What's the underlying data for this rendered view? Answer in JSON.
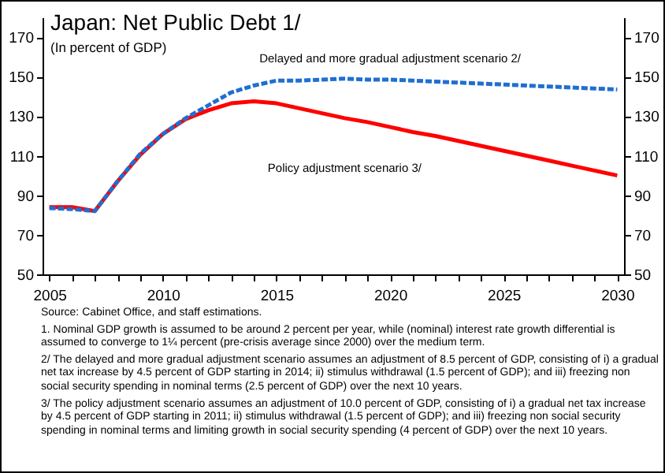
{
  "chart_data": {
    "type": "line",
    "title": "Japan: Net Public Debt 1/",
    "subtitle": "(In percent of GDP)",
    "x": [
      2005,
      2006,
      2007,
      2008,
      2009,
      2010,
      2011,
      2012,
      2013,
      2014,
      2015,
      2016,
      2017,
      2018,
      2019,
      2020,
      2021,
      2022,
      2023,
      2024,
      2025,
      2026,
      2027,
      2028,
      2029,
      2030
    ],
    "series": [
      {
        "name": "Delayed and more gradual adjustment scenario 2/",
        "color": "#1f6fd1",
        "line_style": "dashed",
        "values": [
          83.5,
          83,
          82,
          97,
          111,
          121,
          129,
          135.5,
          142,
          145.5,
          148,
          148,
          148.5,
          149,
          148.5,
          148.5,
          148,
          147.5,
          147,
          146.5,
          146,
          145.5,
          145,
          144.5,
          144,
          143.5
        ]
      },
      {
        "name": "Policy adjustment scenario 3/",
        "color": "#ff0000",
        "line_style": "solid",
        "values": [
          84,
          84,
          82,
          97,
          110.5,
          121,
          128.5,
          133,
          136.5,
          137.5,
          136.5,
          134,
          131.5,
          129,
          127,
          124.5,
          122,
          120,
          117.5,
          115,
          112.5,
          110,
          107.5,
          105,
          102.5,
          100
        ]
      }
    ],
    "xlim": [
      2004.7,
      2030.3
    ],
    "xticks": [
      2005,
      {
        "value": 2006,
        "label": null
      },
      {
        "value": 2007,
        "label": null
      },
      {
        "value": 2008,
        "label": null
      },
      {
        "value": 2009,
        "label": null
      },
      2010,
      {
        "value": 2011,
        "label": null
      },
      {
        "value": 2012,
        "label": null
      },
      {
        "value": 2013,
        "label": null
      },
      {
        "value": 2014,
        "label": null
      },
      2015,
      {
        "value": 2016,
        "label": null
      },
      {
        "value": 2017,
        "label": null
      },
      {
        "value": 2018,
        "label": null
      },
      {
        "value": 2019,
        "label": null
      },
      2020,
      {
        "value": 2021,
        "label": null
      },
      {
        "value": 2022,
        "label": null
      },
      {
        "value": 2023,
        "label": null
      },
      {
        "value": 2024,
        "label": null
      },
      2025,
      {
        "value": 2026,
        "label": null
      },
      {
        "value": 2027,
        "label": null
      },
      {
        "value": 2028,
        "label": null
      },
      {
        "value": 2029,
        "label": null
      },
      2030
    ],
    "ylim": [
      50,
      180
    ],
    "yticks": [
      50,
      70,
      90,
      110,
      130,
      150,
      170
    ],
    "y2lim": [
      50,
      180
    ],
    "y2ticks": [
      50,
      70,
      90,
      110,
      130,
      150,
      170
    ],
    "annotations": [
      "Source: Cabinet Office, and staff estimations.",
      "1. Nominal GDP growth is assumed to be around 2 percent per year, while (nominal)  interest rate growth differential is assumed to converge to 1¼ percent (pre-crisis average since 2000) over the medium term.",
      "2/ The delayed and more gradual adjustment scenario assumes an adjustment of 8.5 percent of GDP, consisting of i) a gradual net tax increase by 4.5 percent of GDP starting in 2014; ii) stimulus withdrawal (1.5 percent of GDP); and iii) freezing non social security spending in nominal terms (2.5 percent of GDP) over the next 10 years.",
      "3/ The policy adjustment scenario assumes an adjustment of 10.0 percent of GDP, consisting of  i) a gradual net tax increase by 4.5 percent of GDP starting in 2011; ii) stimulus withdrawal (1.5 percent of GDP); and iii) freezing non social security spending  in nominal terms and limiting growth in social security spending (4 percent of GDP) over the next 10 years."
    ],
    "grid": false
  }
}
